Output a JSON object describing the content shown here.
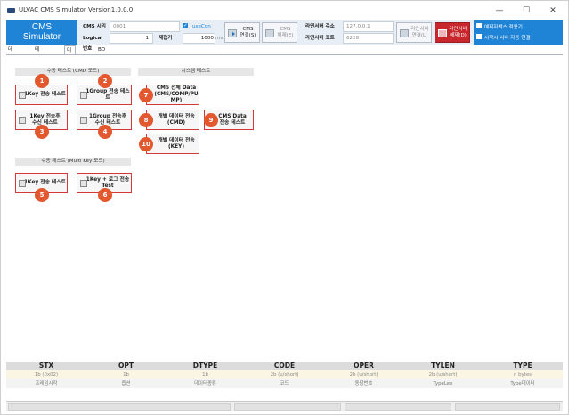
{
  "window": {
    "title": "ULVAC CMS Simulator Version1.0.0.0",
    "minimize": "—",
    "maximize": "☐",
    "close": "✕"
  },
  "header": {
    "logo_line1": "CMS",
    "logo_line2": "Simulator",
    "cms_addr_label": "CMS 시리얼",
    "cms_addr_value": "0001",
    "logical_no_label": "Logical 번호",
    "logical_no_value": "1",
    "use_con_label": "useCon",
    "retry_label": "재접기",
    "retry_value": "1000",
    "retry_unit": "ms",
    "cms_connect_btn": "CMS\n연결(S)",
    "cms_disconnect_btn": "CMS\n해제(E)",
    "line_server_addr_label": "라인서버 주소",
    "line_server_addr_value": "127.0.0.1",
    "line_server_port_label": "라인서버 포트",
    "line_server_port_value": "6228",
    "ls_connect_btn": "라인서버\n연결(L)",
    "ls_disconnect_btn": "라인서버\n해제(D)",
    "opt1_label": "예제자박스 적용기",
    "opt2_label": "시작시 서버 자동 연결"
  },
  "tabs": [
    {
      "label": "데이터 조회"
    },
    {
      "label": "테포트 설정"
    },
    {
      "label": "디버깅(개발)"
    },
    {
      "label": "BD 상태"
    }
  ],
  "groups": {
    "manual_cmd": "수동 테스트 (CMD 모드)",
    "system": "시스템 테스트",
    "manual_multi": "수동 테스트 (Multi Key 모드)"
  },
  "buttons": [
    {
      "badge": "1",
      "label": "1Key 전송 테스트"
    },
    {
      "badge": "2",
      "label": "1Group 전송 테스트"
    },
    {
      "badge": "3",
      "label": "1Key 전송후\n수신 테스트"
    },
    {
      "badge": "4",
      "label": "1Group 전송후\n수신 테스트"
    },
    {
      "badge": "5",
      "label": "1Key 전송 테스트"
    },
    {
      "badge": "6",
      "label": "1Key + 로그 전송\nTest"
    },
    {
      "badge": "7",
      "label": "CMS 전체 Data\n(CMS/COMP/PU\nMP)"
    },
    {
      "badge": "8",
      "label": "개별 데이터 전송\n(CMD)"
    },
    {
      "badge": "9",
      "label": "CMS Data\n전송 테스트"
    },
    {
      "badge": "10",
      "label": "개별 데이터 전송\n(KEY)"
    }
  ],
  "protocol": {
    "headers": [
      "STX",
      "OPT",
      "DTYPE",
      "CODE",
      "OPER",
      "TYLEN",
      "TYPE"
    ],
    "values": [
      "1b (0x02)",
      "1b",
      "1b",
      "2b (u/short)",
      "2b (u/short)",
      "2b (u/short)",
      "n bytes"
    ],
    "descs": [
      "프레임시작",
      "옵션",
      "데이터종류",
      "코드",
      "동담번호",
      "TypeLen",
      "Type데이터"
    ]
  },
  "colors": {
    "accent": "#1f83d6",
    "badge": "#e2582f",
    "button_border": "#d23a3a",
    "danger": "#c8262d"
  }
}
